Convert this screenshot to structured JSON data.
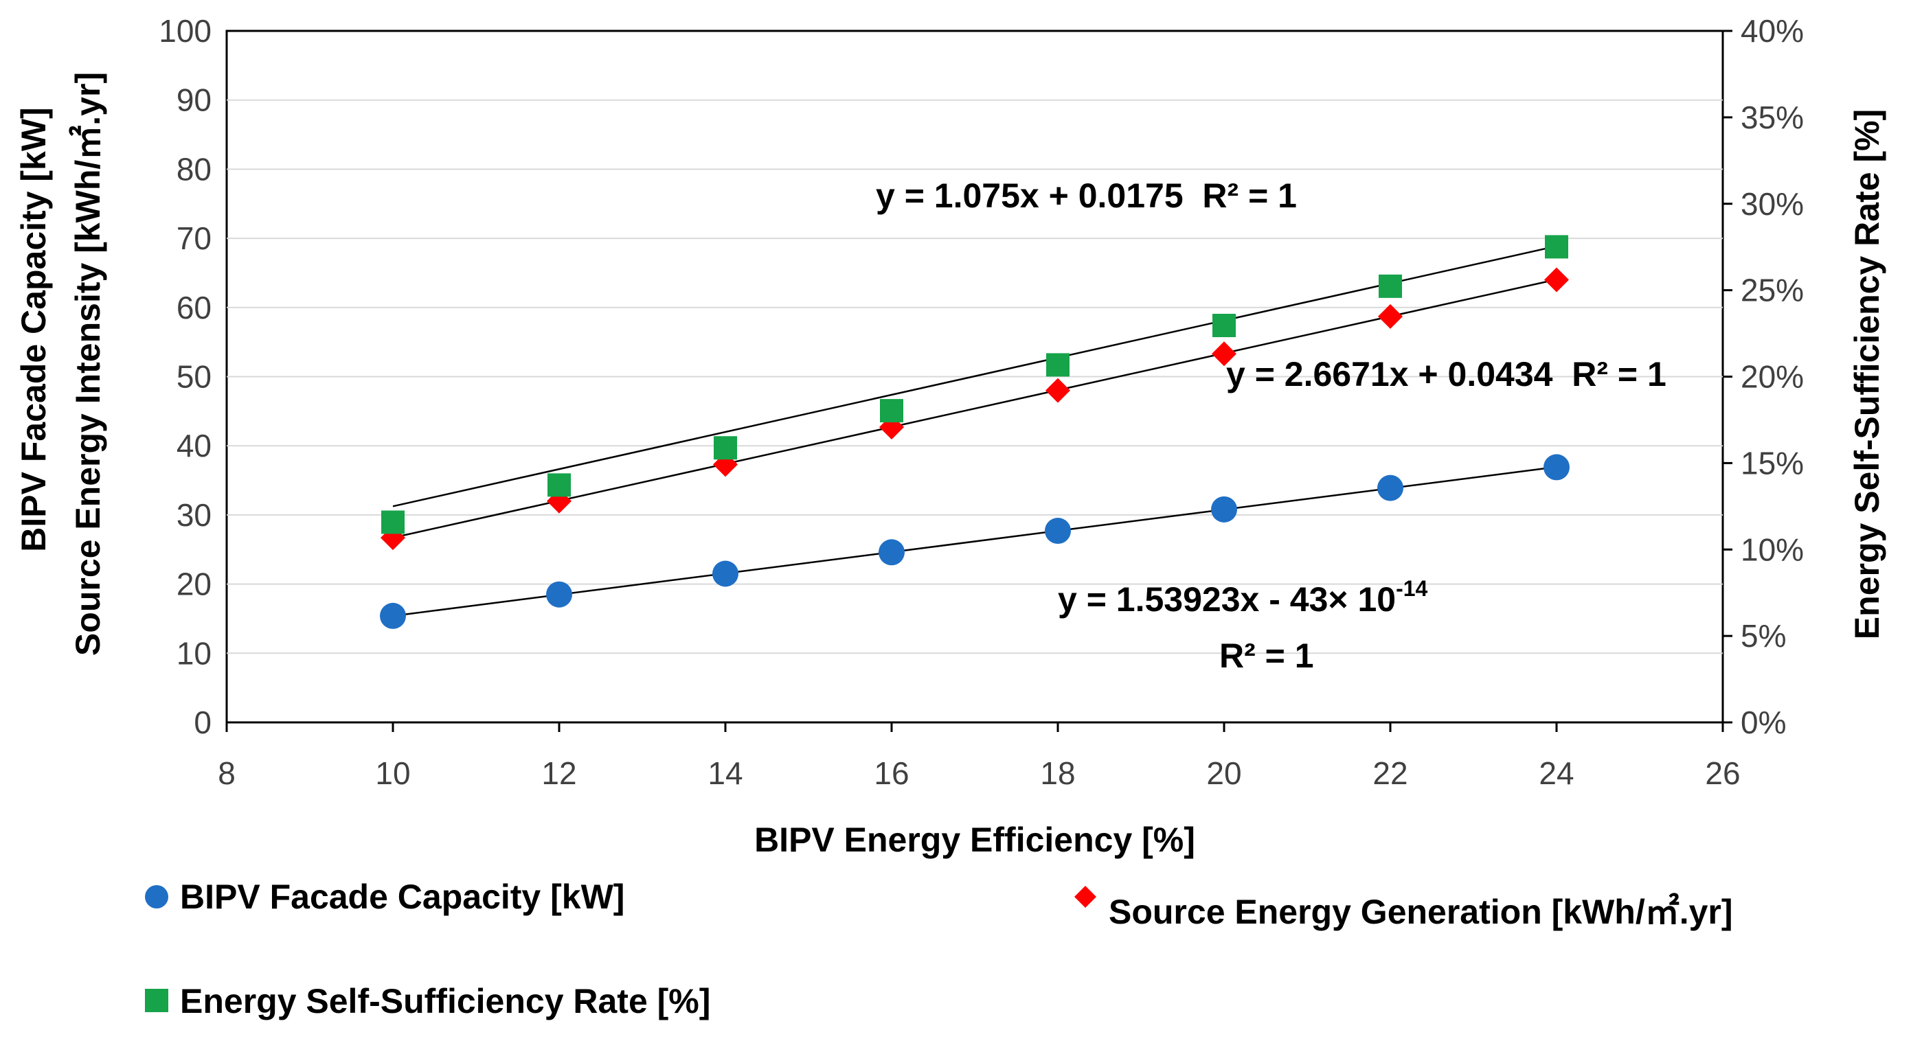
{
  "chart_data": {
    "type": "scatter",
    "xlabel": "BIPV Energy Efficiency [%]",
    "ylabel_left_lines": [
      "BIPV Facade Capacity [kW]",
      "Source Energy Intensity [kWh/㎡.yr]"
    ],
    "ylabel_right": "Energy Self-Sufficiency Rate [%]",
    "xlim": [
      8,
      26
    ],
    "ylim": [
      0,
      100
    ],
    "y2lim": [
      0,
      0.4
    ],
    "x_ticks": [
      "8",
      "10",
      "12",
      "14",
      "16",
      "18",
      "20",
      "22",
      "24",
      "26"
    ],
    "y_ticks": [
      "0",
      "10",
      "20",
      "30",
      "40",
      "50",
      "60",
      "70",
      "80",
      "90",
      "100"
    ],
    "y2_ticks": [
      "0%",
      "5%",
      "10%",
      "15%",
      "20%",
      "25%",
      "30%",
      "35%",
      "40%"
    ],
    "x": [
      10,
      12,
      14,
      16,
      18,
      20,
      22,
      24
    ],
    "series": [
      {
        "name": "BIPV Facade Capacity [kW]",
        "axis": "left",
        "marker": "circle",
        "color": "#1f6fc5",
        "values": [
          15.4,
          18.5,
          21.5,
          24.6,
          27.7,
          30.8,
          33.9,
          36.9
        ],
        "trendline": {
          "slope": 1.53923,
          "intercept": 0
        }
      },
      {
        "name": "Source Energy Generation [kWh/㎡.yr]",
        "axis": "left",
        "marker": "diamond",
        "color": "#ff0000",
        "values": [
          26.7,
          32.0,
          37.3,
          42.7,
          48.0,
          53.3,
          58.7,
          64.0
        ],
        "trendline": {
          "slope": 2.6671,
          "intercept": 0.0434
        }
      },
      {
        "name": "Energy Self-Sufficiency Rate [%]",
        "axis": "right",
        "marker": "square",
        "color": "#16a34a",
        "values": [
          0.1158,
          0.1373,
          0.1588,
          0.1803,
          0.2068,
          0.2296,
          0.2523,
          0.2751
        ],
        "trendline": {
          "slope": 0.01075,
          "intercept": 0.0175
        }
      }
    ],
    "annotations": {
      "eq_ssr": "y = 1.075x + 0.0175  R² = 1",
      "eq_source": "y = 2.6671x + 0.0434  R² = 1",
      "eq_capacity": "y = 1.53923x - 43× 10",
      "eq_capacity_exp": "-14",
      "eq_capacity_r2": "R² = 1"
    },
    "legend": {
      "capacity": "BIPV Facade Capacity [kW]",
      "source": "Source Energy Generation [kWh/㎡.yr]",
      "ssr": "Energy Self-Sufficiency Rate [%]"
    }
  }
}
